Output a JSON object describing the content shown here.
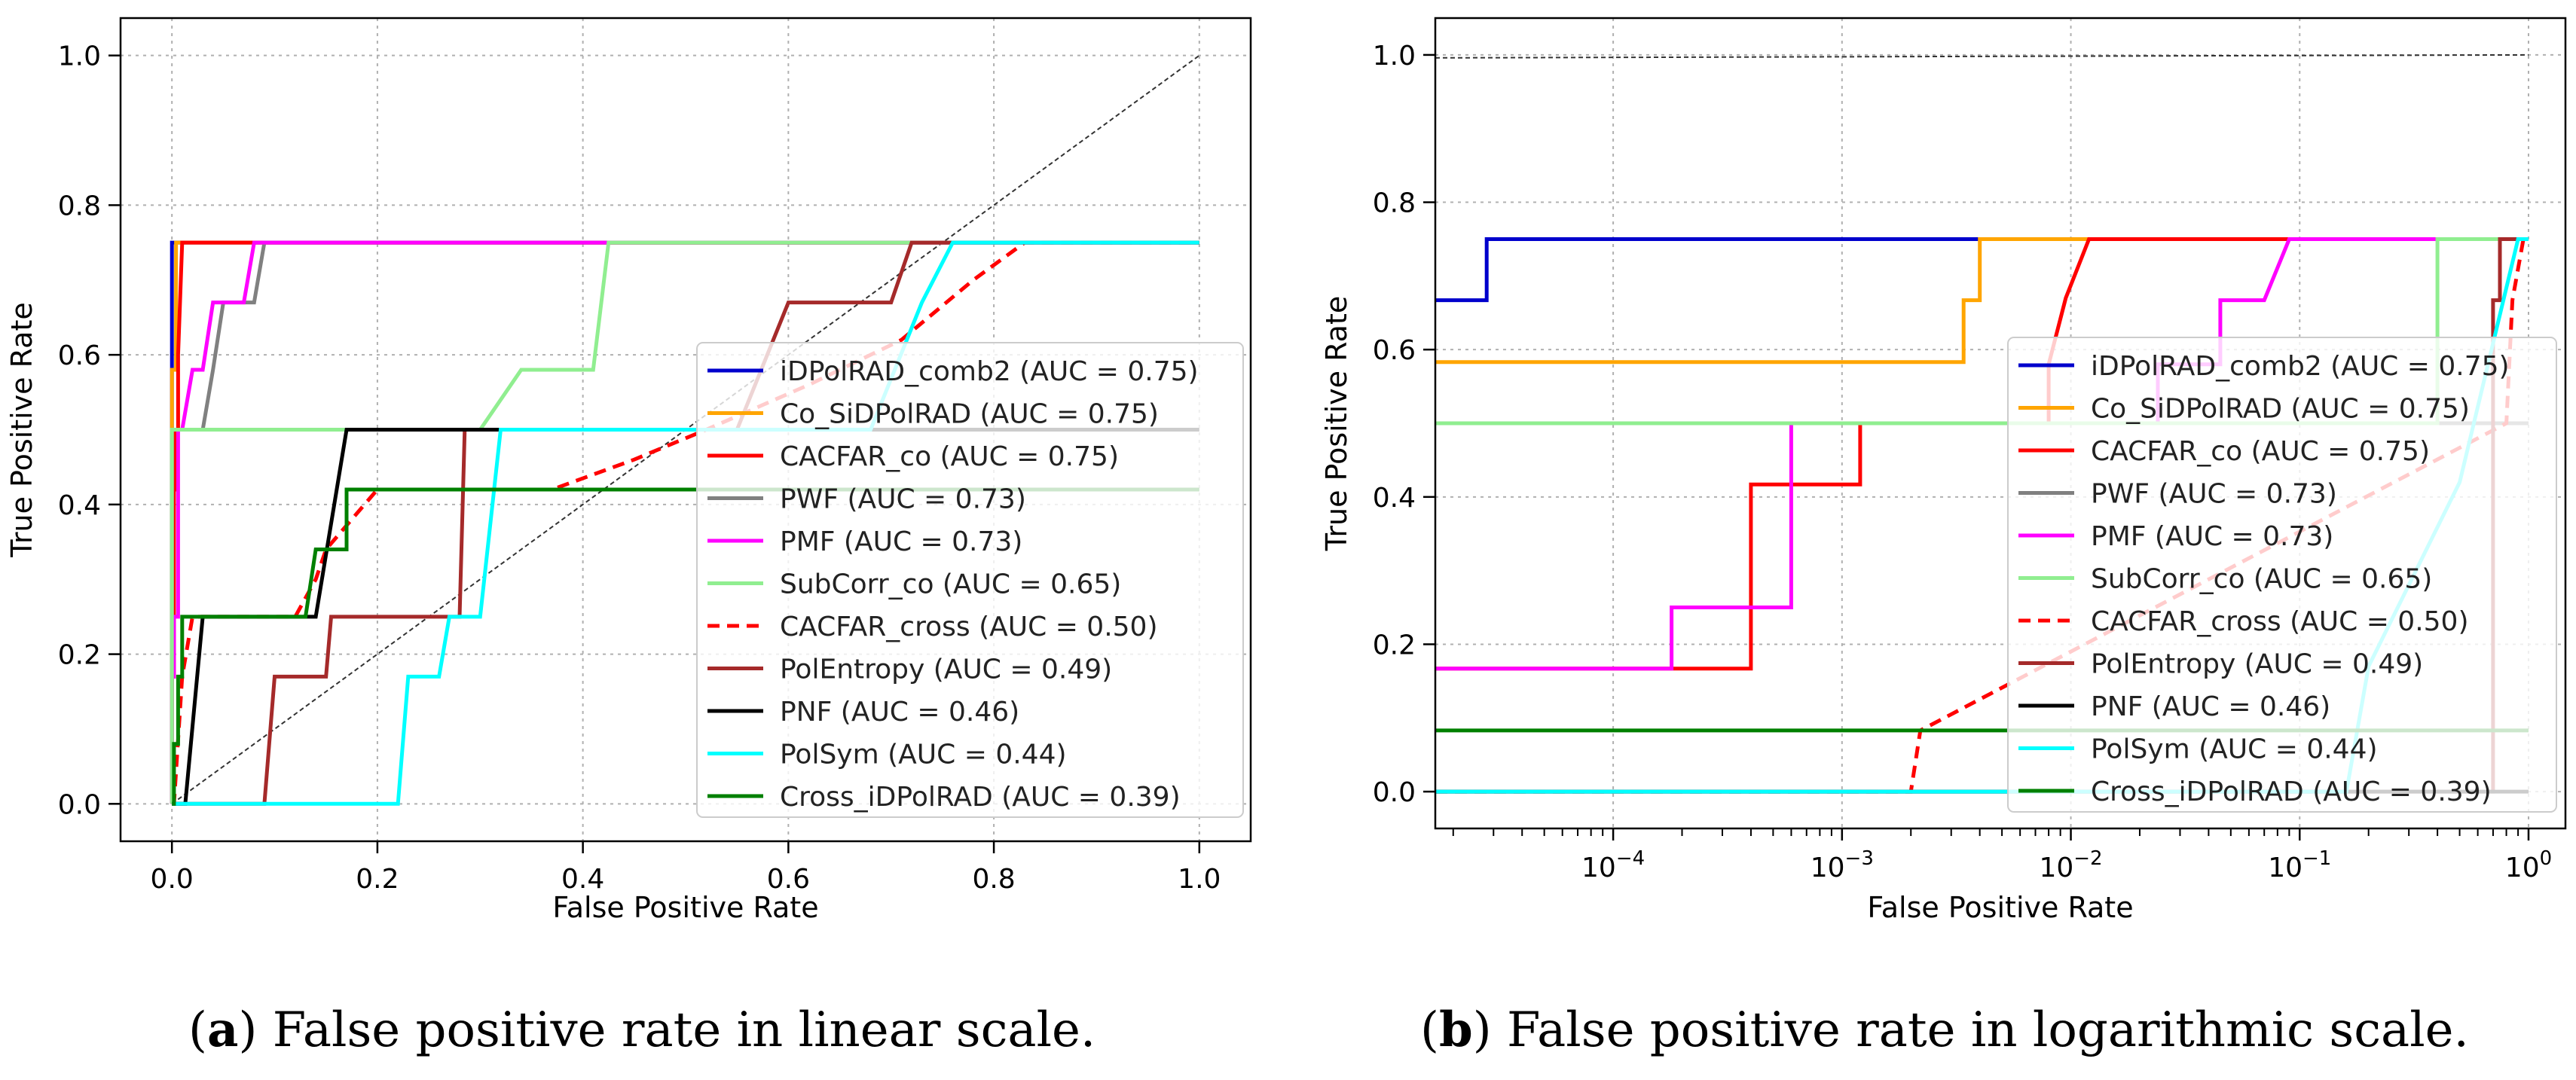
{
  "chart_data": [
    {
      "type": "line",
      "panel": "a",
      "xscale": "linear",
      "xlim": [
        -0.05,
        1.05
      ],
      "ylim": [
        -0.05,
        1.05
      ],
      "xticks": [
        {
          "v": 0,
          "label": "0.0"
        },
        {
          "v": 0.2,
          "label": "0.2"
        },
        {
          "v": 0.4,
          "label": "0.4"
        },
        {
          "v": 0.6,
          "label": "0.6"
        },
        {
          "v": 0.8,
          "label": "0.8"
        },
        {
          "v": 1,
          "label": "1.0"
        }
      ],
      "yticks": [
        {
          "v": 0,
          "label": "0.0"
        },
        {
          "v": 0.2,
          "label": "0.2"
        },
        {
          "v": 0.4,
          "label": "0.4"
        },
        {
          "v": 0.6,
          "label": "0.6"
        },
        {
          "v": 0.8,
          "label": "0.8"
        },
        {
          "v": 1,
          "label": "1.0"
        }
      ],
      "xlabel": "False Positive Rate",
      "ylabel": "True Positive Rate",
      "grid": true,
      "legend_position": "lower-right",
      "diagonal": [
        [
          0,
          0
        ],
        [
          1,
          1
        ]
      ],
      "series": [
        {
          "name": "iDPolRAD_comb2 (AUC = 0.75)",
          "color": "#0000cc",
          "dash": "solid",
          "points": [
            [
              0,
              0
            ],
            [
              0,
              0.75
            ],
            [
              1,
              0.75
            ]
          ]
        },
        {
          "name": "Co_SiDPolRAD (AUC = 0.75)",
          "color": "#ffa500",
          "dash": "solid",
          "points": [
            [
              0,
              0
            ],
            [
              0,
              0.58
            ],
            [
              0.004,
              0.58
            ],
            [
              0.004,
              0.75
            ],
            [
              1,
              0.75
            ]
          ]
        },
        {
          "name": "CACFAR_co (AUC = 0.75)",
          "color": "#ff0000",
          "dash": "solid",
          "points": [
            [
              0,
              0
            ],
            [
              0,
              0.17
            ],
            [
              0.002,
              0.17
            ],
            [
              0.002,
              0.42
            ],
            [
              0.003,
              0.42
            ],
            [
              0.003,
              0.5
            ],
            [
              0.006,
              0.5
            ],
            [
              0.006,
              0.6
            ],
            [
              0.01,
              0.75
            ],
            [
              1,
              0.75
            ]
          ]
        },
        {
          "name": "PWF (AUC = 0.73)",
          "color": "#808080",
          "dash": "solid",
          "points": [
            [
              0,
              0
            ],
            [
              0,
              0.5
            ],
            [
              0.03,
              0.5
            ],
            [
              0.04,
              0.58
            ],
            [
              0.05,
              0.67
            ],
            [
              0.08,
              0.67
            ],
            [
              0.09,
              0.75
            ],
            [
              1,
              0.75
            ]
          ]
        },
        {
          "name": "PMF (AUC = 0.73)",
          "color": "#ff00ff",
          "dash": "solid",
          "points": [
            [
              0,
              0
            ],
            [
              0,
              0.17
            ],
            [
              0.002,
              0.17
            ],
            [
              0.002,
              0.25
            ],
            [
              0.006,
              0.25
            ],
            [
              0.006,
              0.5
            ],
            [
              0.01,
              0.5
            ],
            [
              0.02,
              0.58
            ],
            [
              0.03,
              0.58
            ],
            [
              0.04,
              0.67
            ],
            [
              0.07,
              0.67
            ],
            [
              0.08,
              0.75
            ],
            [
              1,
              0.75
            ]
          ]
        },
        {
          "name": "SubCorr_co (AUC = 0.65)",
          "color": "#90ee90",
          "dash": "solid",
          "points": [
            [
              0,
              0
            ],
            [
              0,
              0.5
            ],
            [
              0.3,
              0.5
            ],
            [
              0.34,
              0.58
            ],
            [
              0.41,
              0.58
            ],
            [
              0.425,
              0.75
            ],
            [
              1,
              0.75
            ]
          ]
        },
        {
          "name": "CACFAR_cross (AUC = 0.50)",
          "color": "#ff0000",
          "dash": "dashed",
          "points": [
            [
              0,
              0
            ],
            [
              0.002,
              0
            ],
            [
              0.01,
              0.17
            ],
            [
              0.02,
              0.25
            ],
            [
              0.12,
              0.25
            ],
            [
              0.14,
              0.3
            ],
            [
              0.15,
              0.34
            ],
            [
              0.2,
              0.42
            ],
            [
              0.37,
              0.42
            ],
            [
              0.45,
              0.46
            ],
            [
              0.52,
              0.5
            ],
            [
              0.62,
              0.56
            ],
            [
              0.71,
              0.62
            ],
            [
              0.78,
              0.7
            ],
            [
              0.83,
              0.75
            ],
            [
              1,
              0.75
            ]
          ]
        },
        {
          "name": "PolEntropy (AUC = 0.49)",
          "color": "#a52a2a",
          "dash": "solid",
          "points": [
            [
              0,
              0
            ],
            [
              0.09,
              0
            ],
            [
              0.1,
              0.17
            ],
            [
              0.15,
              0.17
            ],
            [
              0.155,
              0.25
            ],
            [
              0.28,
              0.25
            ],
            [
              0.285,
              0.5
            ],
            [
              0.55,
              0.5
            ],
            [
              0.6,
              0.67
            ],
            [
              0.7,
              0.67
            ],
            [
              0.72,
              0.75
            ],
            [
              1,
              0.75
            ]
          ]
        },
        {
          "name": "PNF (AUC = 0.46)",
          "color": "#000000",
          "dash": "solid",
          "points": [
            [
              0,
              0
            ],
            [
              0.013,
              0
            ],
            [
              0.03,
              0.25
            ],
            [
              0.14,
              0.25
            ],
            [
              0.17,
              0.5
            ],
            [
              1,
              0.5
            ]
          ]
        },
        {
          "name": "PolSym (AUC = 0.44)",
          "color": "#00ffff",
          "dash": "solid",
          "points": [
            [
              0,
              0
            ],
            [
              0.22,
              0
            ],
            [
              0.23,
              0.17
            ],
            [
              0.26,
              0.17
            ],
            [
              0.27,
              0.25
            ],
            [
              0.3,
              0.25
            ],
            [
              0.32,
              0.5
            ],
            [
              0.68,
              0.5
            ],
            [
              0.73,
              0.67
            ],
            [
              0.76,
              0.75
            ],
            [
              1,
              0.75
            ]
          ]
        },
        {
          "name": "Cross_iDPolRAD (AUC = 0.39)",
          "color": "#008000",
          "dash": "solid",
          "points": [
            [
              0,
              0
            ],
            [
              0.002,
              0
            ],
            [
              0.002,
              0.08
            ],
            [
              0.006,
              0.08
            ],
            [
              0.006,
              0.17
            ],
            [
              0.01,
              0.17
            ],
            [
              0.01,
              0.25
            ],
            [
              0.13,
              0.25
            ],
            [
              0.14,
              0.34
            ],
            [
              0.17,
              0.34
            ],
            [
              0.17,
              0.42
            ],
            [
              1,
              0.42
            ]
          ]
        }
      ]
    },
    {
      "type": "line",
      "panel": "b",
      "xscale": "log",
      "xlim": [
        1.67e-05,
        1.45
      ],
      "ylim": [
        -0.05,
        1.05
      ],
      "xticks": [
        {
          "v": 0.0001,
          "base": "10",
          "exp": "−4"
        },
        {
          "v": 0.001,
          "base": "10",
          "exp": "−3"
        },
        {
          "v": 0.01,
          "base": "10",
          "exp": "−2"
        },
        {
          "v": 0.1,
          "base": "10",
          "exp": "−1"
        },
        {
          "v": 1,
          "base": "10",
          "exp": "0"
        }
      ],
      "yticks": [
        {
          "v": 0,
          "label": "0.0"
        },
        {
          "v": 0.2,
          "label": "0.2"
        },
        {
          "v": 0.4,
          "label": "0.4"
        },
        {
          "v": 0.6,
          "label": "0.6"
        },
        {
          "v": 0.8,
          "label": "0.8"
        },
        {
          "v": 1,
          "label": "1.0"
        }
      ],
      "xlabel": "False Positive Rate",
      "ylabel": "True Positive Rate",
      "grid": true,
      "legend_position": "center-right",
      "diagonal": [
        [
          1.67e-05,
          0.996
        ],
        [
          1,
          1
        ]
      ],
      "series": [
        {
          "name": "iDPolRAD_comb2 (AUC = 0.75)",
          "color": "#0000cc",
          "dash": "solid",
          "points": [
            [
              1.67e-05,
              0.667
            ],
            [
              2.8e-05,
              0.667
            ],
            [
              2.8e-05,
              0.75
            ],
            [
              1,
              0.75
            ]
          ]
        },
        {
          "name": "Co_SiDPolRAD (AUC = 0.75)",
          "color": "#ffa500",
          "dash": "solid",
          "points": [
            [
              1.67e-05,
              0.583
            ],
            [
              0.0034,
              0.583
            ],
            [
              0.0034,
              0.667
            ],
            [
              0.004,
              0.667
            ],
            [
              0.004,
              0.75
            ],
            [
              1,
              0.75
            ]
          ]
        },
        {
          "name": "CACFAR_co (AUC = 0.75)",
          "color": "#ff0000",
          "dash": "solid",
          "points": [
            [
              1.67e-05,
              0.167
            ],
            [
              0.0004,
              0.167
            ],
            [
              0.0004,
              0.417
            ],
            [
              0.0012,
              0.417
            ],
            [
              0.0012,
              0.5
            ],
            [
              0.008,
              0.5
            ],
            [
              0.008,
              0.58
            ],
            [
              0.0095,
              0.67
            ],
            [
              0.012,
              0.75
            ],
            [
              1,
              0.75
            ]
          ]
        },
        {
          "name": "PWF (AUC = 0.73)",
          "color": "#808080",
          "dash": "solid",
          "points": [
            [
              1.67e-05,
              0.5
            ],
            [
              1,
              0.5
            ]
          ]
        },
        {
          "name": "PMF (AUC = 0.73)",
          "color": "#ff00ff",
          "dash": "solid",
          "points": [
            [
              1.67e-05,
              0.167
            ],
            [
              0.00018,
              0.167
            ],
            [
              0.00018,
              0.25
            ],
            [
              0.0006,
              0.25
            ],
            [
              0.0006,
              0.5
            ],
            [
              0.024,
              0.5
            ],
            [
              0.024,
              0.58
            ],
            [
              0.045,
              0.58
            ],
            [
              0.045,
              0.667
            ],
            [
              0.07,
              0.667
            ],
            [
              0.09,
              0.75
            ],
            [
              1,
              0.75
            ]
          ]
        },
        {
          "name": "SubCorr_co (AUC = 0.65)",
          "color": "#90ee90",
          "dash": "solid",
          "points": [
            [
              1.67e-05,
              0.5
            ],
            [
              0.4,
              0.5
            ],
            [
              0.4,
              0.75
            ],
            [
              1,
              0.75
            ]
          ]
        },
        {
          "name": "CACFAR_cross (AUC = 0.50)",
          "color": "#ff0000",
          "dash": "dashed",
          "points": [
            [
              1.67e-05,
              0
            ],
            [
              0.002,
              0
            ],
            [
              0.0022,
              0.083
            ],
            [
              0.8,
              0.5
            ],
            [
              0.85,
              0.667
            ],
            [
              0.95,
              0.75
            ]
          ]
        },
        {
          "name": "PolEntropy (AUC = 0.49)",
          "color": "#a52a2a",
          "dash": "solid",
          "points": [
            [
              1.67e-05,
              0
            ],
            [
              0.7,
              0
            ],
            [
              0.7,
              0.667
            ],
            [
              0.75,
              0.667
            ],
            [
              0.75,
              0.75
            ],
            [
              1,
              0.75
            ]
          ]
        },
        {
          "name": "PNF (AUC = 0.46)",
          "color": "#000000",
          "dash": "solid",
          "points": [
            [
              1.67e-05,
              0
            ],
            [
              1,
              0
            ]
          ]
        },
        {
          "name": "PolSym (AUC = 0.44)",
          "color": "#00ffff",
          "dash": "solid",
          "points": [
            [
              1.67e-05,
              0
            ],
            [
              0.16,
              0
            ],
            [
              0.2,
              0.17
            ],
            [
              0.5,
              0.42
            ],
            [
              0.9,
              0.75
            ],
            [
              1,
              0.75
            ]
          ]
        },
        {
          "name": "Cross_iDPolRAD (AUC = 0.39)",
          "color": "#008000",
          "dash": "solid",
          "points": [
            [
              1.67e-05,
              0.083
            ],
            [
              0.009,
              0.083
            ],
            [
              0.009,
              0.083
            ],
            [
              1,
              0.083
            ]
          ]
        }
      ]
    }
  ],
  "captions": {
    "a": {
      "letter": "a",
      "text": ") False positive rate in linear scale."
    },
    "b": {
      "letter": "b",
      "text": ") False positive rate in logarithmic scale."
    }
  }
}
